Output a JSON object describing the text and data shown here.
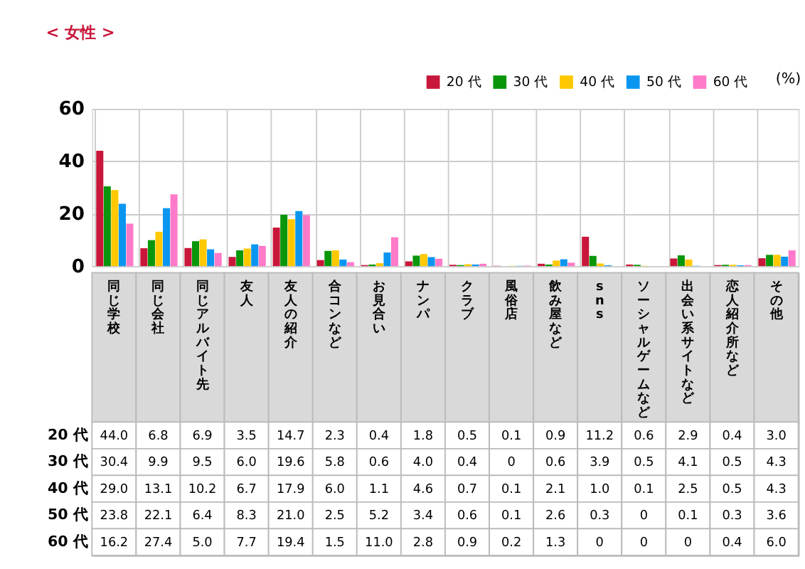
{
  "chart_data": {
    "type": "bar",
    "title": "< 女性 >",
    "categories": [
      "同じ学校",
      "同じ会社",
      "同じアルバイト先",
      "友人",
      "友人の紹介",
      "合コンなど",
      "お見合い",
      "ナンパ",
      "クラブ",
      "風俗店",
      "飲み屋など",
      "sns",
      "ソーシャルゲームなど",
      "出会い系サイトなど",
      "恋人紹介所など",
      "その他"
    ],
    "series": [
      {
        "name": "20 代",
        "color": "#c8173a",
        "values": [
          44.0,
          6.8,
          6.9,
          3.5,
          14.7,
          2.3,
          0.4,
          1.8,
          0.5,
          0.1,
          0.9,
          11.2,
          0.6,
          2.9,
          0.4,
          3.0
        ],
        "value_labels": [
          "44.0",
          "6.8",
          "6.9",
          "3.5",
          "14.7",
          "2.3",
          "0.4",
          "1.8",
          "0.5",
          "0.1",
          "0.9",
          "11.2",
          "0.6",
          "2.9",
          "0.4",
          "3.0"
        ]
      },
      {
        "name": "30 代",
        "color": "#0a960a",
        "values": [
          30.4,
          9.9,
          9.5,
          6.0,
          19.6,
          5.8,
          0.6,
          4.0,
          0.4,
          0,
          0.6,
          3.9,
          0.5,
          4.1,
          0.5,
          4.3
        ],
        "value_labels": [
          "30.4",
          "9.9",
          "9.5",
          "6.0",
          "19.6",
          "5.8",
          "0.6",
          "4.0",
          "0.4",
          "0",
          "0.6",
          "3.9",
          "0.5",
          "4.1",
          "0.5",
          "4.3"
        ]
      },
      {
        "name": "40 代",
        "color": "#ffc800",
        "values": [
          29.0,
          13.1,
          10.2,
          6.7,
          17.9,
          6.0,
          1.1,
          4.6,
          0.7,
          0.1,
          2.1,
          1.0,
          0.1,
          2.5,
          0.5,
          4.3
        ],
        "value_labels": [
          "29.0",
          "13.1",
          "10.2",
          "6.7",
          "17.9",
          "6.0",
          "1.1",
          "4.6",
          "0.7",
          "0.1",
          "2.1",
          "1.0",
          "0.1",
          "2.5",
          "0.5",
          "4.3"
        ]
      },
      {
        "name": "50 代",
        "color": "#0a96f0",
        "values": [
          23.8,
          22.1,
          6.4,
          8.3,
          21.0,
          2.5,
          5.2,
          3.4,
          0.6,
          0.1,
          2.6,
          0.3,
          0,
          0.1,
          0.3,
          3.6
        ],
        "value_labels": [
          "23.8",
          "22.1",
          "6.4",
          "8.3",
          "21.0",
          "2.5",
          "5.2",
          "3.4",
          "0.6",
          "0.1",
          "2.6",
          "0.3",
          "0",
          "0.1",
          "0.3",
          "3.6"
        ]
      },
      {
        "name": "60 代",
        "color": "#ff7ac8",
        "values": [
          16.2,
          27.4,
          5.0,
          7.7,
          19.4,
          1.5,
          11.0,
          2.8,
          0.9,
          0.2,
          1.3,
          0,
          0,
          0,
          0.4,
          6.0
        ],
        "value_labels": [
          "16.2",
          "27.4",
          "5.0",
          "7.7",
          "19.4",
          "1.5",
          "11.0",
          "2.8",
          "0.9",
          "0.2",
          "1.3",
          "0",
          "0",
          "0",
          "0.4",
          "6.0"
        ]
      }
    ],
    "ylim": [
      0,
      60
    ],
    "yticks": [
      0,
      20,
      40,
      60
    ],
    "grid": true,
    "legend": "top right",
    "annotations": [
      "(%)"
    ]
  }
}
